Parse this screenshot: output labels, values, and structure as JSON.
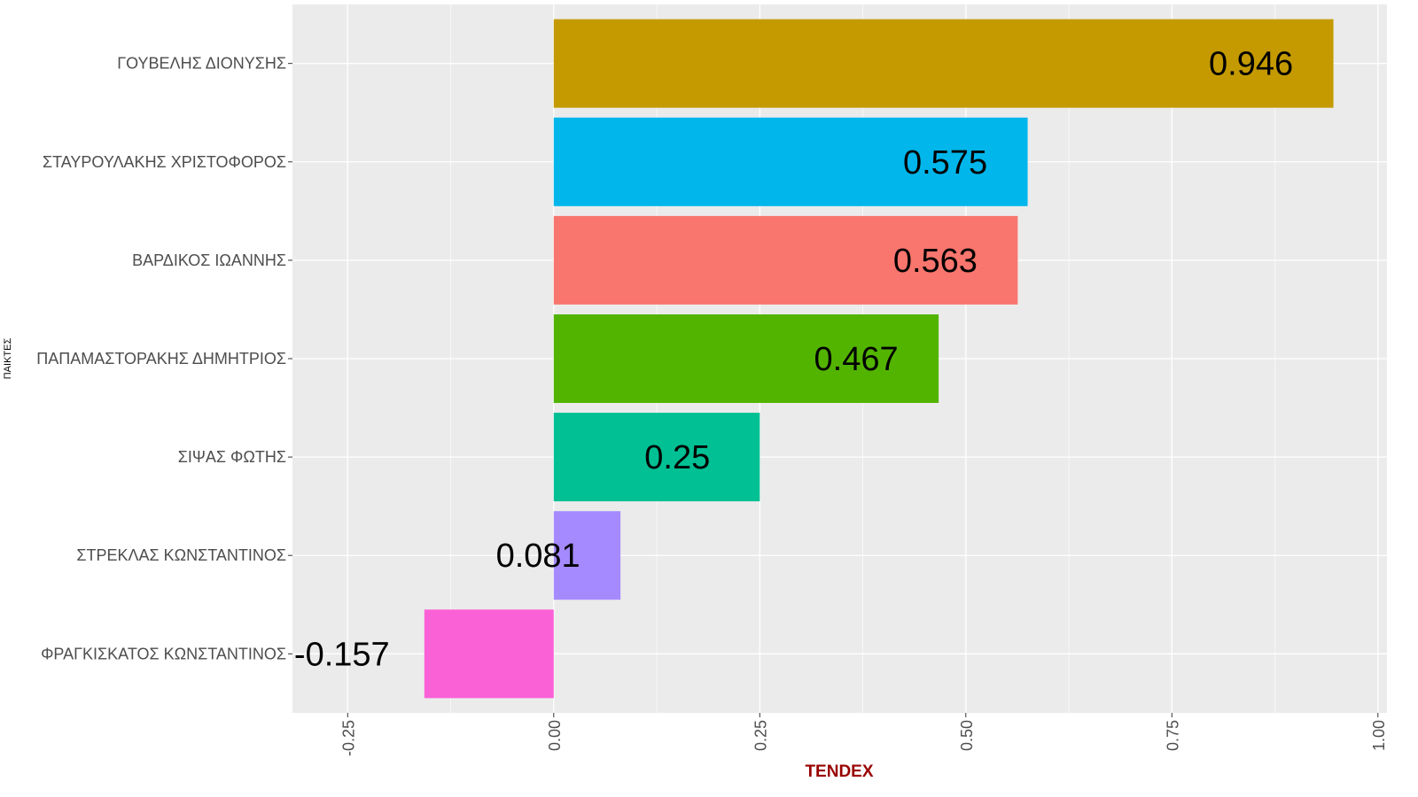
{
  "chart_data": {
    "type": "bar",
    "orientation": "horizontal",
    "xlabel": "TENDEX",
    "ylabel": "ΠΑΙΚΤΕΣ",
    "xlim": [
      -0.317,
      1.011
    ],
    "x_ticks": [
      "-0.25",
      "0.00",
      "0.25",
      "0.50",
      "0.75",
      "1.00"
    ],
    "x_tick_values": [
      -0.25,
      0,
      0.25,
      0.5,
      0.75,
      1.0
    ],
    "grid": true,
    "legend": "none",
    "categories": [
      "ΓΟΥΒΕΛΗΣ ΔΙΟΝΥΣΗΣ",
      "ΣΤΑΥΡΟΥΛΑΚΗΣ ΧΡΙΣΤΟΦΟΡΟΣ",
      "ΒΑΡΔΙΚΟΣ ΙΩΑΝΝΗΣ",
      "ΠΑΠΑΜΑΣΤΟΡΑΚΗΣ ΔΗΜΗΤΡΙΟΣ",
      "ΣΙΨΑΣ ΦΩΤΗΣ",
      "ΣΤΡΕΚΛΑΣ ΚΩΝΣΤΑΝΤΙΝΟΣ",
      "ΦΡΑΓΚΙΣΚΑΤΟΣ ΚΩΝΣΤΑΝΤΙΝΟΣ"
    ],
    "values": [
      0.946,
      0.575,
      0.563,
      0.467,
      0.25,
      0.081,
      -0.157
    ],
    "data_labels": [
      "0.946",
      "0.575",
      "0.563",
      "0.467",
      "0.25",
      "0.081",
      "-0.157"
    ],
    "colors": [
      "#C49A00",
      "#00B6EB",
      "#F8766D",
      "#53B400",
      "#00C094",
      "#A58AFF",
      "#FB61D7"
    ],
    "panel_background": "#EBEBEB",
    "xlabel_color": "#990000"
  }
}
